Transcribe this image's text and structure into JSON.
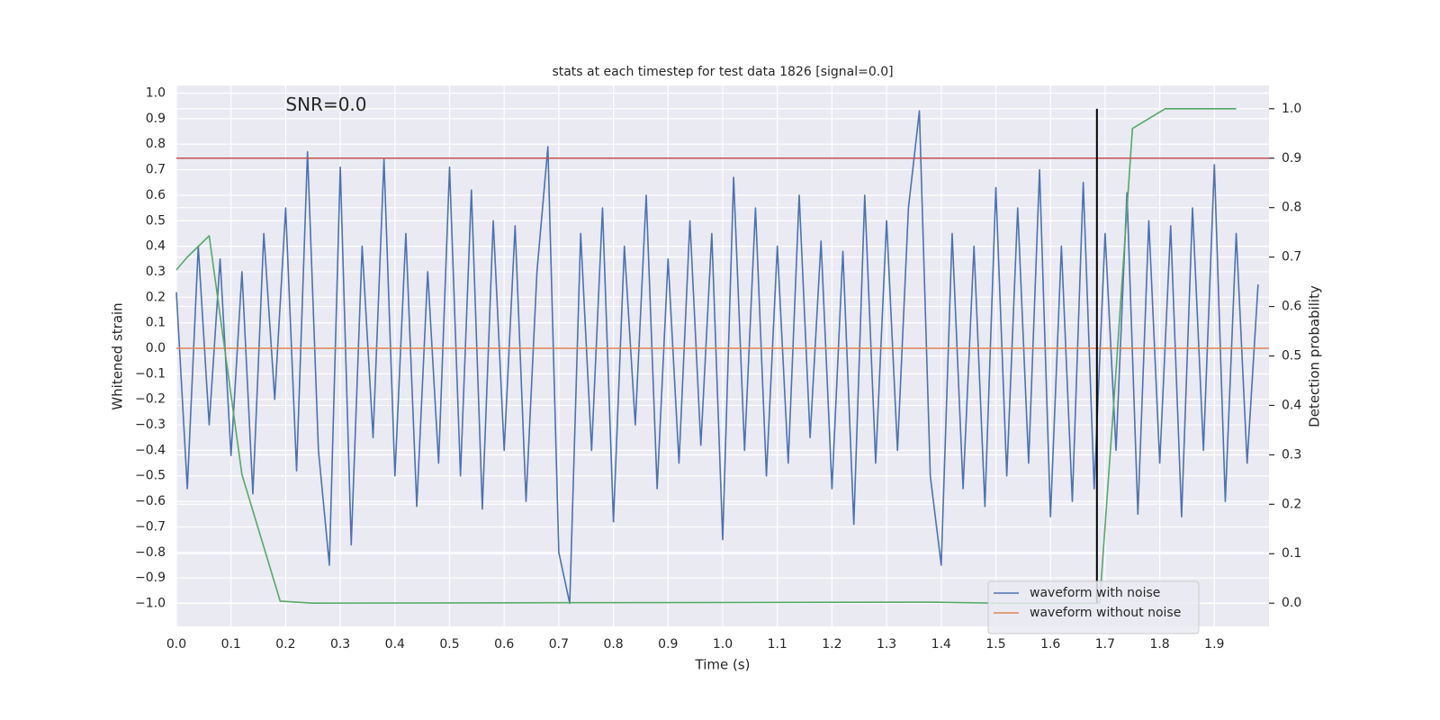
{
  "chart_data": {
    "type": "line",
    "title": "stats at each timestep for test data 1826 [signal=0.0]",
    "x_label": "Time (s)",
    "y_label": "Whitened strain",
    "y2_label": "Detection probability",
    "xlim": [
      0,
      2.0
    ],
    "ylim": [
      -1.09,
      1.03
    ],
    "y2lim": [
      -0.047,
      1.047
    ],
    "xticks": [
      {
        "value": 0,
        "label": "0.0"
      },
      {
        "value": 0.1,
        "label": "0.1"
      },
      {
        "value": 0.2,
        "label": "0.2"
      },
      {
        "value": 0.3,
        "label": "0.3"
      },
      {
        "value": 0.4,
        "label": "0.4"
      },
      {
        "value": 0.5,
        "label": "0.5"
      },
      {
        "value": 0.6,
        "label": "0.6"
      },
      {
        "value": 0.7,
        "label": "0.7"
      },
      {
        "value": 0.8,
        "label": "0.8"
      },
      {
        "value": 0.9,
        "label": "0.9"
      },
      {
        "value": 1,
        "label": "1.0"
      },
      {
        "value": 1.1,
        "label": "1.1"
      },
      {
        "value": 1.2,
        "label": "1.2"
      },
      {
        "value": 1.3,
        "label": "1.3"
      },
      {
        "value": 1.4,
        "label": "1.4"
      },
      {
        "value": 1.5,
        "label": "1.5"
      },
      {
        "value": 1.6,
        "label": "1.6"
      },
      {
        "value": 1.7,
        "label": "1.7"
      },
      {
        "value": 1.8,
        "label": "1.8"
      },
      {
        "value": 1.9,
        "label": "1.9"
      }
    ],
    "yticks": [
      {
        "value": 1,
        "label": "1.0"
      },
      {
        "value": 0.9,
        "label": "0.9"
      },
      {
        "value": 0.8,
        "label": "0.8"
      },
      {
        "value": 0.7,
        "label": "0.7"
      },
      {
        "value": 0.6,
        "label": "0.6"
      },
      {
        "value": 0.5,
        "label": "0.5"
      },
      {
        "value": 0.4,
        "label": "0.4"
      },
      {
        "value": 0.3,
        "label": "0.3"
      },
      {
        "value": 0.2,
        "label": "0.2"
      },
      {
        "value": 0.1,
        "label": "0.1"
      },
      {
        "value": 0,
        "label": "0.0"
      },
      {
        "value": -0.1,
        "label": "−0.1"
      },
      {
        "value": -0.2,
        "label": "−0.2"
      },
      {
        "value": -0.3,
        "label": "−0.3"
      },
      {
        "value": -0.4,
        "label": "−0.4"
      },
      {
        "value": -0.5,
        "label": "−0.5"
      },
      {
        "value": -0.6,
        "label": "−0.6"
      },
      {
        "value": -0.7,
        "label": "−0.7"
      },
      {
        "value": -0.8,
        "label": "−0.8"
      },
      {
        "value": -0.9,
        "label": "−0.9"
      },
      {
        "value": -1,
        "label": "−1.0"
      }
    ],
    "y2ticks": [
      {
        "value": 0,
        "label": "0.0"
      },
      {
        "value": 0.1,
        "label": "0.1"
      },
      {
        "value": 0.2,
        "label": "0.2"
      },
      {
        "value": 0.3,
        "label": "0.3"
      },
      {
        "value": 0.4,
        "label": "0.4"
      },
      {
        "value": 0.5,
        "label": "0.5"
      },
      {
        "value": 0.6,
        "label": "0.6"
      },
      {
        "value": 0.7,
        "label": "0.7"
      },
      {
        "value": 0.8,
        "label": "0.8"
      },
      {
        "value": 0.9,
        "label": "0.9"
      },
      {
        "value": 1,
        "label": "1.0"
      }
    ],
    "grid": true,
    "legend": "lower right",
    "series": [
      {
        "name": "waveform with noise",
        "color": "#4c72b0",
        "x": [
          0,
          0.02,
          0.04,
          0.06,
          0.08,
          0.1,
          0.12,
          0.14,
          0.16,
          0.18,
          0.2,
          0.22,
          0.24,
          0.26,
          0.28,
          0.3,
          0.32,
          0.34,
          0.36,
          0.38,
          0.4,
          0.42,
          0.44,
          0.46,
          0.48,
          0.5,
          0.52,
          0.54,
          0.56,
          0.58,
          0.6,
          0.62,
          0.64,
          0.66,
          0.68,
          0.7,
          0.72,
          0.74,
          0.76,
          0.78,
          0.8,
          0.82,
          0.84,
          0.86,
          0.88,
          0.9,
          0.92,
          0.94,
          0.96,
          0.98,
          1,
          1.02,
          1.04,
          1.06,
          1.08,
          1.1,
          1.12,
          1.14,
          1.16,
          1.18,
          1.2,
          1.22,
          1.24,
          1.26,
          1.28,
          1.3,
          1.32,
          1.34,
          1.36,
          1.38,
          1.4,
          1.42,
          1.44,
          1.46,
          1.48,
          1.5,
          1.52,
          1.54,
          1.56,
          1.58,
          1.6,
          1.62,
          1.64,
          1.66,
          1.68,
          1.7,
          1.72,
          1.74,
          1.76,
          1.78,
          1.8,
          1.82,
          1.84,
          1.86,
          1.88,
          1.9,
          1.92,
          1.94,
          1.96,
          1.98
        ],
        "values": [
          0.22,
          -0.55,
          0.4,
          -0.3,
          0.35,
          -0.42,
          0.3,
          -0.57,
          0.45,
          -0.2,
          0.55,
          -0.48,
          0.77,
          -0.4,
          -0.85,
          0.71,
          -0.77,
          0.4,
          -0.35,
          0.74,
          -0.5,
          0.45,
          -0.62,
          0.3,
          -0.45,
          0.71,
          -0.5,
          0.62,
          -0.63,
          0.5,
          -0.4,
          0.48,
          -0.6,
          0.3,
          0.79,
          -0.8,
          -1.0,
          0.45,
          -0.4,
          0.55,
          -0.68,
          0.4,
          -0.3,
          0.6,
          -0.55,
          0.35,
          -0.45,
          0.5,
          -0.38,
          0.45,
          -0.75,
          0.67,
          -0.4,
          0.55,
          -0.5,
          0.4,
          -0.45,
          0.6,
          -0.35,
          0.42,
          -0.55,
          0.38,
          -0.69,
          0.6,
          -0.45,
          0.5,
          -0.4,
          0.55,
          0.93,
          -0.5,
          -0.85,
          0.45,
          -0.55,
          0.4,
          -0.62,
          0.63,
          -0.5,
          0.55,
          -0.45,
          0.7,
          -0.66,
          0.4,
          -0.6,
          0.65,
          -0.55,
          0.45,
          -0.4,
          0.61,
          -0.65,
          0.5,
          -0.45,
          0.48,
          -0.66,
          0.55,
          -0.4,
          0.72,
          -0.6,
          0.45,
          -0.45,
          0.25
        ]
      },
      {
        "name": "waveform without noise",
        "color": "#dd8452",
        "x": [
          0,
          2.0
        ],
        "values": [
          0,
          0
        ]
      },
      {
        "color": "#55a868",
        "axis": "y2",
        "x": [
          0,
          0.02,
          0.06,
          0.12,
          0.19,
          0.25,
          1.38,
          1.5,
          1.69,
          1.72,
          1.75,
          1.81,
          1.94
        ],
        "values": [
          0.674,
          0.7,
          0.743,
          0.26,
          0.004,
          0.0,
          0.002,
          0.0,
          0.0,
          0.47,
          0.96,
          1.0,
          1.0
        ]
      }
    ],
    "hlines": [
      {
        "y": 0.9,
        "axis": "y2",
        "color": "#c44e52"
      }
    ],
    "vlines": [
      {
        "x": 1.685,
        "ymin": 0.0,
        "ymax": 1.0,
        "axis": "y2",
        "color": "#000000"
      }
    ],
    "annotations": [
      {
        "text": "SNR=0.0",
        "x": 0.2,
        "y": 0.95
      }
    ]
  }
}
